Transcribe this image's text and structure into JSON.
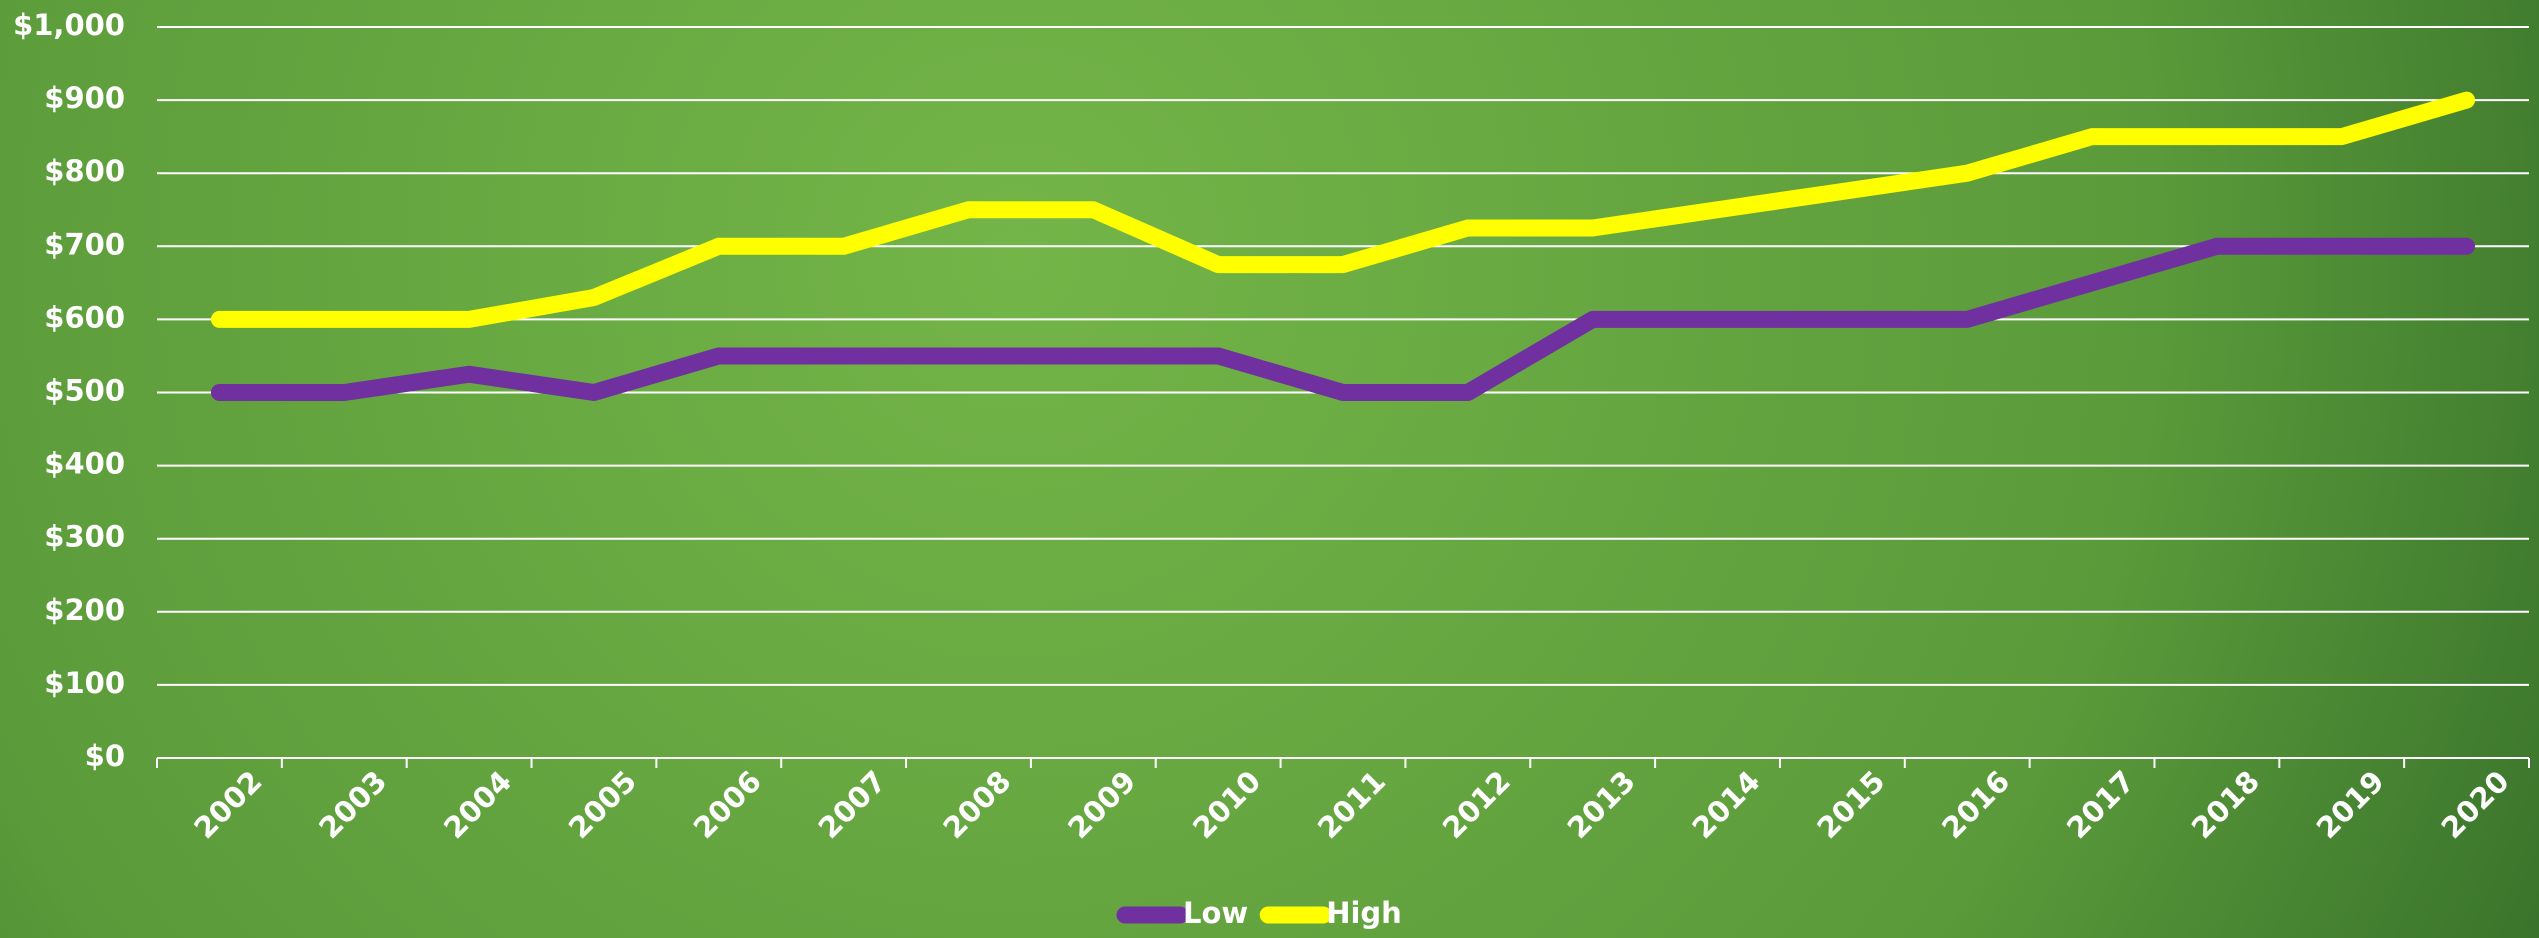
{
  "chart_data": {
    "type": "line",
    "categories": [
      "2002",
      "2003",
      "2004",
      "2005",
      "2006",
      "2007",
      "2008",
      "2009",
      "2010",
      "2011",
      "2012",
      "2013",
      "2014",
      "2015",
      "2016",
      "2017",
      "2018",
      "2019",
      "2020"
    ],
    "series": [
      {
        "name": "Low",
        "color": "#7030a0",
        "values": [
          500,
          500,
          525,
          500,
          550,
          550,
          550,
          550,
          550,
          500,
          500,
          600,
          600,
          600,
          600,
          650,
          700,
          700,
          700
        ]
      },
      {
        "name": "High",
        "color": "#ffff00",
        "values": [
          600,
          600,
          600,
          630,
          700,
          700,
          750,
          750,
          675,
          675,
          725,
          725,
          750,
          775,
          800,
          850,
          850,
          850,
          900
        ]
      }
    ],
    "ylim": [
      0,
      1000
    ],
    "yticks": [
      {
        "value": 0,
        "label": "$0"
      },
      {
        "value": 100,
        "label": "$100"
      },
      {
        "value": 200,
        "label": "$200"
      },
      {
        "value": 300,
        "label": "$300"
      },
      {
        "value": 400,
        "label": "$400"
      },
      {
        "value": 500,
        "label": "$500"
      },
      {
        "value": 600,
        "label": "$600"
      },
      {
        "value": 700,
        "label": "$700"
      },
      {
        "value": 800,
        "label": "$800"
      },
      {
        "value": 900,
        "label": "$900"
      },
      {
        "value": 1000,
        "label": "$1,000"
      }
    ],
    "grid": true,
    "legend": "bottom"
  }
}
